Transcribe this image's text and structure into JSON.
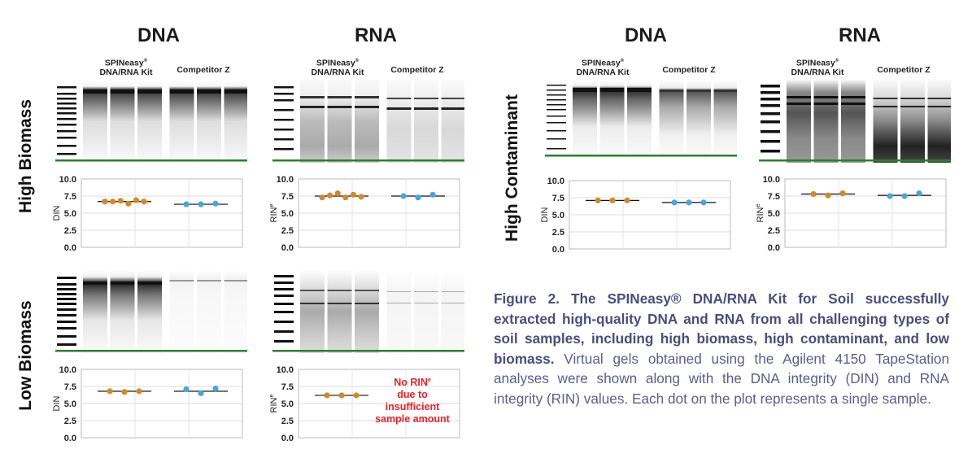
{
  "panels": {
    "left": {
      "col_dna": "DNA",
      "col_rna": "RNA",
      "kit_label_line1": "SPINeasy",
      "kit_label_sup": "®",
      "kit_label_line2": "DNA/RNA Kit",
      "competitor_label": "Competitor Z"
    },
    "right": {
      "col_dna": "DNA",
      "col_rna": "RNA",
      "kit_label_line1": "SPINeasy",
      "kit_label_sup": "®",
      "kit_label_line2": "DNA/RNA Kit",
      "competitor_label": "Competitor Z"
    }
  },
  "row_labels": {
    "high_biomass": "High Biomass",
    "low_biomass": "Low Biomass",
    "high_contaminant": "High Contaminant"
  },
  "axis": {
    "din_label": "DIN",
    "rin_label": "RIN",
    "rin_sup": "e",
    "ticks": [
      "10.0",
      "7.5",
      "5.0",
      "2.5",
      "0.0"
    ]
  },
  "no_rin_note": {
    "line1": "No RIN",
    "sup": "e",
    "line2": "due to",
    "line3": "insufficient",
    "line4": "sample amount"
  },
  "colors": {
    "spineasy_dot": "#d08a2e",
    "competitor_dot": "#4aa6d6",
    "gel_marker_green": "#2e7d32",
    "warning_red": "#e0262e",
    "caption_color": "#5b5f87"
  },
  "chart_data": [
    {
      "type": "scatter",
      "name": "High Biomass DNA",
      "ylabel": "DIN",
      "ylim": [
        0,
        10
      ],
      "groups": [
        {
          "name": "SPINeasy DNA/RNA Kit",
          "values": [
            6.7,
            6.7,
            6.8,
            6.4,
            6.9,
            6.7
          ],
          "mean": 6.7
        },
        {
          "name": "Competitor Z",
          "values": [
            6.3,
            6.3,
            6.4
          ],
          "mean": 6.3
        }
      ]
    },
    {
      "type": "scatter",
      "name": "High Biomass RNA",
      "ylabel": "RINe",
      "ylim": [
        0,
        10
      ],
      "groups": [
        {
          "name": "SPINeasy DNA/RNA Kit",
          "values": [
            7.3,
            7.6,
            7.9,
            7.3,
            7.7,
            7.4
          ],
          "mean": 7.5
        },
        {
          "name": "Competitor Z",
          "values": [
            7.5,
            7.3,
            7.7
          ],
          "mean": 7.5
        }
      ]
    },
    {
      "type": "scatter",
      "name": "Low Biomass DNA",
      "ylabel": "DIN",
      "ylim": [
        0,
        10
      ],
      "groups": [
        {
          "name": "SPINeasy DNA/RNA Kit",
          "values": [
            6.8,
            6.7,
            6.8
          ],
          "mean": 6.8
        },
        {
          "name": "Competitor Z",
          "values": [
            7.1,
            6.5,
            7.2
          ],
          "mean": 6.8
        }
      ]
    },
    {
      "type": "scatter",
      "name": "Low Biomass RNA",
      "ylabel": "RINe",
      "ylim": [
        0,
        10
      ],
      "groups": [
        {
          "name": "SPINeasy DNA/RNA Kit",
          "values": [
            6.2,
            6.2,
            6.2
          ],
          "mean": 6.2
        },
        {
          "name": "Competitor Z",
          "values": [],
          "mean": null
        }
      ]
    },
    {
      "type": "scatter",
      "name": "High Contaminant DNA",
      "ylabel": "DIN",
      "ylim": [
        0,
        10
      ],
      "groups": [
        {
          "name": "SPINeasy DNA/RNA Kit",
          "values": [
            7.1,
            7.1,
            7.1
          ],
          "mean": 7.1
        },
        {
          "name": "Competitor Z",
          "values": [
            6.8,
            6.8,
            6.8
          ],
          "mean": 6.8
        }
      ]
    },
    {
      "type": "scatter",
      "name": "High Contaminant RNA",
      "ylabel": "RINe",
      "ylim": [
        0,
        10
      ],
      "groups": [
        {
          "name": "SPINeasy DNA/RNA Kit",
          "values": [
            7.8,
            7.6,
            7.9
          ],
          "mean": 7.8
        },
        {
          "name": "Competitor Z",
          "values": [
            7.5,
            7.5,
            7.9
          ],
          "mean": 7.6
        }
      ]
    }
  ],
  "caption": {
    "bold": "Figure 2. The SPINeasy® DNA/RNA Kit for Soil successfully extracted high-quality DNA and RNA from all challenging types of soil samples, including high biomass, high contaminant, and low biomass.",
    "normal": " Virtual gels obtained using the Agilent 4150 TapeStation analyses were shown along with the DNA integrity (DIN) and RNA integrity (RIN) values. Each dot on the plot represents a single sample."
  }
}
